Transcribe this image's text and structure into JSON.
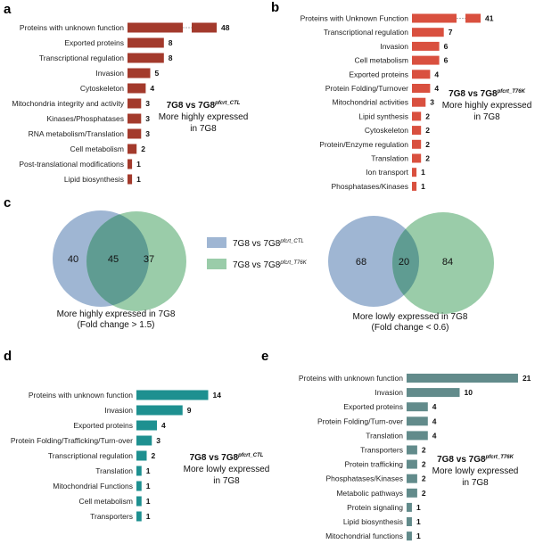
{
  "chart_data": [
    {
      "panel": "a",
      "type": "bar",
      "orientation": "horizontal",
      "color": "#a33a2c",
      "axis_break_on_first_bar": true,
      "categories": [
        "Proteins with unknown function",
        "Exported proteins",
        "Transcriptional regulation",
        "Invasion",
        "Cytoskeleton",
        "Mitochondria integrity and activity",
        "Kinases/Phosphatases",
        "RNA metabolism/Translation",
        "Cell metabolism",
        "Post-translational modifications",
        "Lipid biosynthesis"
      ],
      "values": [
        48,
        8,
        8,
        5,
        4,
        3,
        3,
        3,
        2,
        1,
        1
      ],
      "annotation": {
        "line1_main": "7G8 vs 7G8",
        "line1_sup": "pfcrt_CTL",
        "line2": "More highly expressed",
        "line3": "in 7G8"
      }
    },
    {
      "panel": "b",
      "type": "bar",
      "orientation": "horizontal",
      "color": "#d9503f",
      "axis_break_on_first_bar": true,
      "categories": [
        "Proteins with Unknown Function",
        "Transcriptional regulation",
        "Invasion",
        "Cell metabolism",
        "Exported proteins",
        "Protein Folding/Turnover",
        "Mitochondrial activities",
        "Lipid synthesis",
        "Cytoskeleton",
        "Protein/Enzyme regulation",
        "Translation",
        "Ion transport",
        "Phosphatases/Kinases"
      ],
      "values": [
        41,
        7,
        6,
        6,
        4,
        4,
        3,
        2,
        2,
        2,
        2,
        1,
        1
      ],
      "annotation": {
        "line1_main": "7G8 vs 7G8",
        "line1_sup": "pfcrt_T76K",
        "line2": "More highly expressed",
        "line3": "in 7G8"
      }
    },
    {
      "panel": "c",
      "type": "venn",
      "legend": [
        {
          "main": "7G8 vs 7G8",
          "sup": "pfcrt_CTL",
          "color": "#9fb6d3"
        },
        {
          "main": "7G8 vs 7G8",
          "sup": "pfcrt_T76K",
          "color": "#9acca9"
        }
      ],
      "diagrams": [
        {
          "only_ctl": 40,
          "both": 45,
          "only_t76k": 37,
          "caption1": "More highly expressed in 7G8",
          "caption2": "(Fold change > 1.5)"
        },
        {
          "only_ctl": 68,
          "both": 20,
          "only_t76k": 84,
          "caption1": "More lowly expressed in 7G8",
          "caption2": "(Fold change < 0.6)"
        }
      ],
      "overlap_color": "#5f9c92"
    },
    {
      "panel": "d",
      "type": "bar",
      "orientation": "horizontal",
      "color": "#1e9090",
      "categories": [
        "Proteins with unknown function",
        "Invasion",
        "Exported proteins",
        "Protein Folding/Trafficking/Turn-over",
        "Transcriptional regulation",
        "Translation",
        "Mitochondrial Functions",
        "Cell metabolism",
        "Transporters"
      ],
      "values": [
        14,
        9,
        4,
        3,
        2,
        1,
        1,
        1,
        1
      ],
      "annotation": {
        "line1_main": "7G8 vs 7G8",
        "line1_sup": "pfcrt_CTL",
        "line2": "More lowly expressed",
        "line3": "in 7G8"
      }
    },
    {
      "panel": "e",
      "type": "bar",
      "orientation": "horizontal",
      "color": "#628b8b",
      "categories": [
        "Proteins with unknown function",
        "Invasion",
        "Exported proteins",
        "Protein Folding/Turn-over",
        "Translation",
        "Transporters",
        "Protein trafficking",
        "Phosphatases/Kinases",
        "Metabolic pathways",
        "Protein signaling",
        "Lipid biosynthesis",
        "Mitochondrial functions"
      ],
      "values": [
        21,
        10,
        4,
        4,
        4,
        2,
        2,
        2,
        2,
        1,
        1,
        1
      ],
      "annotation": {
        "line1_main": "7G8 vs 7G8",
        "line1_sup": "pfcrt_T76K",
        "line2": "More lowly expressed",
        "line3": "in 7G8"
      }
    }
  ]
}
